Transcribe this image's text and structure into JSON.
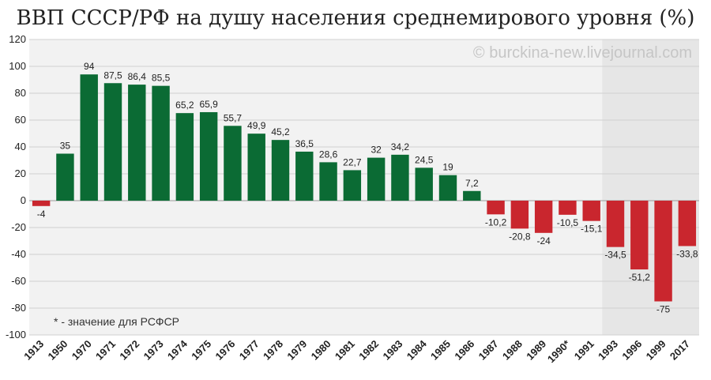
{
  "chart_data": {
    "type": "bar",
    "title": "ВВП СССР/РФ на душу населения среднемирового уровня (%)",
    "watermark": "© burckina-new.livejournal.com",
    "note": "* - значение для РСФСР",
    "ylim": [
      -100,
      120
    ],
    "yticks": [
      120,
      100,
      80,
      60,
      40,
      20,
      0,
      -20,
      -40,
      -60,
      -80,
      -100
    ],
    "grid": true,
    "categories": [
      "1913",
      "1950",
      "1970",
      "1971",
      "1972",
      "1973",
      "1974",
      "1975",
      "1976",
      "1977",
      "1978",
      "1979",
      "1980",
      "1981",
      "1982",
      "1983",
      "1984",
      "1985",
      "1986",
      "1987",
      "1988",
      "1989",
      "1990*",
      "1991",
      "1993",
      "1996",
      "1999",
      "2017"
    ],
    "values": [
      -4,
      35,
      94,
      87.5,
      86.4,
      85.5,
      65.2,
      65.9,
      55.7,
      49.9,
      45.2,
      36.5,
      28.6,
      22.7,
      32,
      34.2,
      24.5,
      19,
      7.2,
      -10.2,
      -20.8,
      -24,
      -10.5,
      -15.1,
      -34.5,
      -51.2,
      -75,
      -33.8
    ],
    "value_labels": [
      "-4",
      "35",
      "94",
      "87,5",
      "86,4",
      "85,5",
      "65,2",
      "65,9",
      "55,7",
      "49,9",
      "45,2",
      "36,5",
      "28,6",
      "22,7",
      "32",
      "34,2",
      "24,5",
      "19",
      "7,2",
      "-10,2",
      "-20,8",
      "-24",
      "-10,5",
      "-15,1",
      "-34,5",
      "-51,2",
      "-75",
      "-33,8"
    ],
    "shaded_from_category": "1993",
    "colors": {
      "positive": "#0b6b34",
      "negative": "#c9262e",
      "shade": "#e6e6e6",
      "grid": "#d0d0d0",
      "plot_bg": "#f2f2f2"
    }
  }
}
